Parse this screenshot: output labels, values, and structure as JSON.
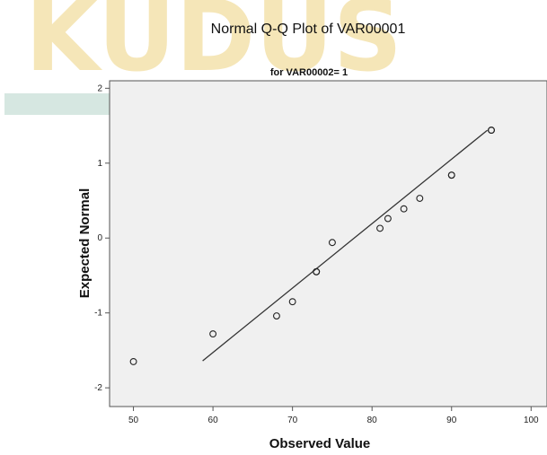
{
  "watermark_text": "KUDUS",
  "colors": {
    "plot_bg": "#f0f0f0",
    "watermark_gold": "#f5e6b8",
    "watermark_teal": "#cfe3dc",
    "line": "#333333",
    "marker": "#222222"
  },
  "chart_data": {
    "type": "scatter",
    "title": "Normal Q-Q Plot of VAR00001",
    "subtitle": "for VAR00002= 1",
    "xlabel": "Observed Value",
    "ylabel": "Expected Normal",
    "xlim": [
      47,
      102
    ],
    "ylim": [
      -2.25,
      2.1
    ],
    "xticks": [
      "50",
      "60",
      "70",
      "80",
      "90",
      "100"
    ],
    "xtick_values": [
      50,
      60,
      70,
      80,
      90,
      100
    ],
    "yticks": [
      "2",
      "1",
      "0",
      "-1",
      "-2"
    ],
    "ytick_values": [
      2,
      1,
      0,
      -1,
      -2
    ],
    "grid": false,
    "points": [
      {
        "x": 50,
        "y": -1.65
      },
      {
        "x": 60,
        "y": -1.28
      },
      {
        "x": 68,
        "y": -1.04
      },
      {
        "x": 70,
        "y": -0.85
      },
      {
        "x": 73,
        "y": -0.45
      },
      {
        "x": 73,
        "y": -0.45
      },
      {
        "x": 75,
        "y": -0.06
      },
      {
        "x": 81,
        "y": 0.13
      },
      {
        "x": 82,
        "y": 0.26
      },
      {
        "x": 84,
        "y": 0.39
      },
      {
        "x": 86,
        "y": 0.53
      },
      {
        "x": 90,
        "y": 0.84
      },
      {
        "x": 90,
        "y": 0.84
      },
      {
        "x": 95,
        "y": 1.44
      },
      {
        "x": 95,
        "y": 1.44
      }
    ],
    "reference_line": {
      "x": [
        58.7,
        94.5
      ],
      "y": [
        -1.64,
        1.44
      ]
    }
  }
}
